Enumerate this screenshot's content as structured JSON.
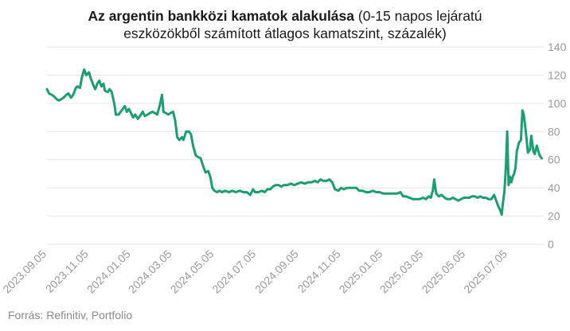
{
  "title": {
    "bold": "Az argentin bankközi kamatok alakulása",
    "rest_line1": " (0-15 napos lejáratú",
    "line2": "eszközökből számított átlagos kamatszint, százalék)"
  },
  "source": "Forrás: Refinitiv, Portfolio",
  "colors": {
    "line": "#1a9e73",
    "grid": "#e3e3e3",
    "tick": "#9a9a9a"
  },
  "chart_data": {
    "type": "line",
    "x_axis": {
      "start": "2023-09-05",
      "end": "2025-08-26",
      "ticks": [
        "2023.09.05",
        "2023.11.05",
        "2024.01.05",
        "2024.03.05",
        "2024.05.05",
        "2024.07.05",
        "2024.09.05",
        "2024.11.05",
        "2025.01.05",
        "2025.03.05",
        "2025.05.05",
        "2025.07.05"
      ]
    },
    "y_axis": {
      "ticks": [
        0,
        20,
        40,
        60,
        80,
        100,
        120,
        140
      ],
      "ylim": [
        0,
        140
      ]
    },
    "grid": "horizontal",
    "series": [
      {
        "points": [
          [
            "2023-09-05",
            110
          ],
          [
            "2023-09-08",
            107
          ],
          [
            "2023-09-12",
            106
          ],
          [
            "2023-09-15",
            105
          ],
          [
            "2023-09-19",
            103
          ],
          [
            "2023-09-22",
            102
          ],
          [
            "2023-09-26",
            103
          ],
          [
            "2023-09-29",
            104
          ],
          [
            "2023-10-03",
            106
          ],
          [
            "2023-10-06",
            107
          ],
          [
            "2023-10-10",
            104
          ],
          [
            "2023-10-13",
            106
          ],
          [
            "2023-10-17",
            111
          ],
          [
            "2023-10-19",
            112
          ],
          [
            "2023-10-23",
            111
          ],
          [
            "2023-10-26",
            119
          ],
          [
            "2023-10-29",
            124
          ],
          [
            "2023-11-01",
            120
          ],
          [
            "2023-11-05",
            122
          ],
          [
            "2023-11-08",
            117
          ],
          [
            "2023-11-12",
            112
          ],
          [
            "2023-11-14",
            110
          ],
          [
            "2023-11-17",
            114
          ],
          [
            "2023-11-20",
            116
          ],
          [
            "2023-11-23",
            112
          ],
          [
            "2023-11-26",
            114
          ],
          [
            "2023-11-28",
            109
          ],
          [
            "2023-12-02",
            108
          ],
          [
            "2023-12-05",
            110
          ],
          [
            "2023-12-08",
            108
          ],
          [
            "2023-12-12",
            99
          ],
          [
            "2023-12-14",
            92
          ],
          [
            "2023-12-18",
            92
          ],
          [
            "2023-12-21",
            94
          ],
          [
            "2023-12-24",
            96
          ],
          [
            "2023-12-27",
            98
          ],
          [
            "2023-12-30",
            94
          ],
          [
            "2024-01-02",
            96
          ],
          [
            "2024-01-05",
            93
          ],
          [
            "2024-01-08",
            90
          ],
          [
            "2024-01-11",
            92
          ],
          [
            "2024-01-15",
            89
          ],
          [
            "2024-01-18",
            91
          ],
          [
            "2024-01-22",
            94
          ],
          [
            "2024-01-25",
            91
          ],
          [
            "2024-01-29",
            92
          ],
          [
            "2024-02-01",
            93
          ],
          [
            "2024-02-05",
            94
          ],
          [
            "2024-02-09",
            93
          ],
          [
            "2024-02-12",
            92
          ],
          [
            "2024-02-16",
            99
          ],
          [
            "2024-02-19",
            106
          ],
          [
            "2024-02-21",
            94
          ],
          [
            "2024-02-25",
            93
          ],
          [
            "2024-02-28",
            92
          ],
          [
            "2024-03-02",
            93
          ],
          [
            "2024-03-06",
            94
          ],
          [
            "2024-03-09",
            88
          ],
          [
            "2024-03-12",
            76
          ],
          [
            "2024-03-15",
            74
          ],
          [
            "2024-03-19",
            76
          ],
          [
            "2024-03-21",
            74
          ],
          [
            "2024-03-25",
            80
          ],
          [
            "2024-03-29",
            80
          ],
          [
            "2024-04-01",
            78
          ],
          [
            "2024-04-04",
            70
          ],
          [
            "2024-04-08",
            63
          ],
          [
            "2024-04-11",
            62
          ],
          [
            "2024-04-15",
            61
          ],
          [
            "2024-04-19",
            55
          ],
          [
            "2024-04-22",
            51
          ],
          [
            "2024-04-26",
            52
          ],
          [
            "2024-04-29",
            48
          ],
          [
            "2024-05-02",
            40
          ],
          [
            "2024-05-05",
            38
          ],
          [
            "2024-05-09",
            37
          ],
          [
            "2024-05-12",
            38
          ],
          [
            "2024-05-16",
            37
          ],
          [
            "2024-05-21",
            38
          ],
          [
            "2024-05-26",
            37
          ],
          [
            "2024-05-31",
            38
          ],
          [
            "2024-06-05",
            37
          ],
          [
            "2024-06-11",
            38
          ],
          [
            "2024-06-16",
            37
          ],
          [
            "2024-06-21",
            37
          ],
          [
            "2024-06-26",
            35
          ],
          [
            "2024-06-30",
            39
          ],
          [
            "2024-07-03",
            37
          ],
          [
            "2024-07-08",
            37
          ],
          [
            "2024-07-13",
            38
          ],
          [
            "2024-07-17",
            37
          ],
          [
            "2024-07-21",
            39
          ],
          [
            "2024-07-25",
            39
          ],
          [
            "2024-07-29",
            41
          ],
          [
            "2024-08-02",
            42
          ],
          [
            "2024-08-06",
            42
          ],
          [
            "2024-08-10",
            41
          ],
          [
            "2024-08-14",
            42
          ],
          [
            "2024-08-19",
            42
          ],
          [
            "2024-08-24",
            43
          ],
          [
            "2024-08-29",
            42
          ],
          [
            "2024-09-03",
            43
          ],
          [
            "2024-09-08",
            44
          ],
          [
            "2024-09-13",
            43
          ],
          [
            "2024-09-18",
            44
          ],
          [
            "2024-09-23",
            44
          ],
          [
            "2024-09-28",
            45
          ],
          [
            "2024-10-02",
            44
          ],
          [
            "2024-10-06",
            46
          ],
          [
            "2024-10-10",
            45
          ],
          [
            "2024-10-15",
            45
          ],
          [
            "2024-10-19",
            46
          ],
          [
            "2024-10-23",
            44
          ],
          [
            "2024-10-27",
            39
          ],
          [
            "2024-11-01",
            38
          ],
          [
            "2024-11-05",
            40
          ],
          [
            "2024-11-09",
            39
          ],
          [
            "2024-11-13",
            40
          ],
          [
            "2024-11-18",
            40
          ],
          [
            "2024-11-23",
            40
          ],
          [
            "2024-11-27",
            40
          ],
          [
            "2024-12-01",
            38
          ],
          [
            "2024-12-06",
            38
          ],
          [
            "2024-12-11",
            37
          ],
          [
            "2024-12-16",
            37
          ],
          [
            "2024-12-21",
            38
          ],
          [
            "2024-12-26",
            37
          ],
          [
            "2024-12-31",
            37
          ],
          [
            "2025-01-05",
            36
          ],
          [
            "2025-01-10",
            36
          ],
          [
            "2025-01-15",
            36
          ],
          [
            "2025-01-20",
            36
          ],
          [
            "2025-01-25",
            36
          ],
          [
            "2025-01-30",
            37
          ],
          [
            "2025-02-03",
            34
          ],
          [
            "2025-02-07",
            34
          ],
          [
            "2025-02-12",
            33
          ],
          [
            "2025-02-17",
            32
          ],
          [
            "2025-02-22",
            32
          ],
          [
            "2025-02-27",
            32
          ],
          [
            "2025-03-04",
            33
          ],
          [
            "2025-03-08",
            32
          ],
          [
            "2025-03-12",
            34
          ],
          [
            "2025-03-15",
            33
          ],
          [
            "2025-03-18",
            38
          ],
          [
            "2025-03-20",
            46
          ],
          [
            "2025-03-23",
            36
          ],
          [
            "2025-03-27",
            34
          ],
          [
            "2025-03-31",
            35
          ],
          [
            "2025-04-04",
            33
          ],
          [
            "2025-04-08",
            32
          ],
          [
            "2025-04-12",
            32
          ],
          [
            "2025-04-16",
            33
          ],
          [
            "2025-04-20",
            32
          ],
          [
            "2025-04-24",
            31
          ],
          [
            "2025-04-28",
            32
          ],
          [
            "2025-05-02",
            33
          ],
          [
            "2025-05-06",
            33
          ],
          [
            "2025-05-10",
            33
          ],
          [
            "2025-05-14",
            34
          ],
          [
            "2025-05-18",
            34
          ],
          [
            "2025-05-22",
            33
          ],
          [
            "2025-05-26",
            34
          ],
          [
            "2025-05-30",
            33
          ],
          [
            "2025-06-03",
            33
          ],
          [
            "2025-06-07",
            32
          ],
          [
            "2025-06-11",
            32
          ],
          [
            "2025-06-15",
            35
          ],
          [
            "2025-06-18",
            31
          ],
          [
            "2025-06-21",
            27
          ],
          [
            "2025-06-24",
            24
          ],
          [
            "2025-06-26",
            21
          ],
          [
            "2025-06-28",
            30
          ],
          [
            "2025-06-30",
            38
          ],
          [
            "2025-07-02",
            54
          ],
          [
            "2025-07-04",
            80
          ],
          [
            "2025-07-06",
            42
          ],
          [
            "2025-07-08",
            48
          ],
          [
            "2025-07-10",
            44
          ],
          [
            "2025-07-12",
            48
          ],
          [
            "2025-07-14",
            50
          ],
          [
            "2025-07-16",
            54
          ],
          [
            "2025-07-18",
            66
          ],
          [
            "2025-07-21",
            72
          ],
          [
            "2025-07-24",
            74
          ],
          [
            "2025-07-26",
            95
          ],
          [
            "2025-07-28",
            92
          ],
          [
            "2025-07-31",
            80
          ],
          [
            "2025-08-03",
            65
          ],
          [
            "2025-08-06",
            67
          ],
          [
            "2025-08-08",
            77
          ],
          [
            "2025-08-11",
            66
          ],
          [
            "2025-08-13",
            64
          ],
          [
            "2025-08-16",
            70
          ],
          [
            "2025-08-20",
            63
          ],
          [
            "2025-08-23",
            61
          ]
        ]
      }
    ]
  }
}
